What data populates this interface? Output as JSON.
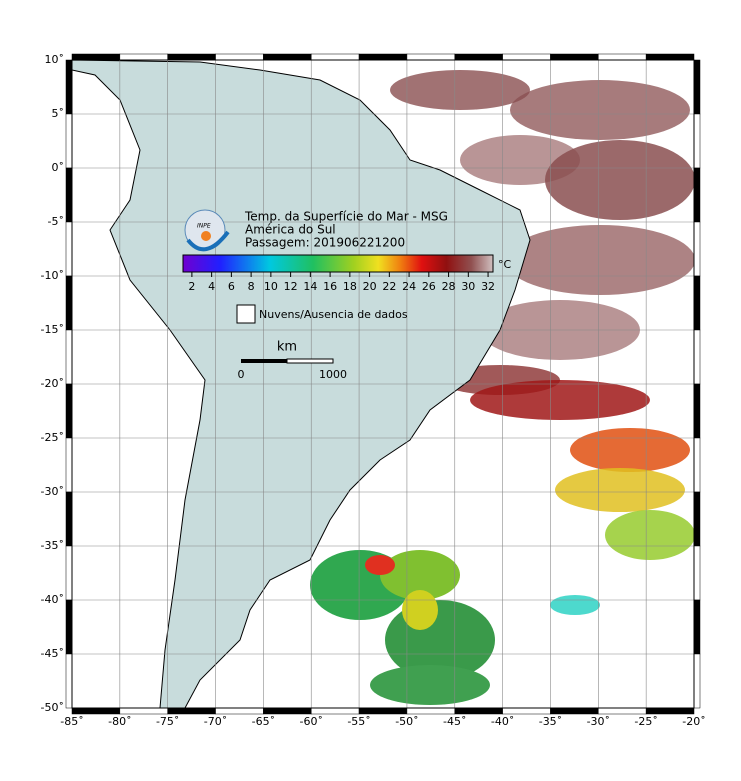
{
  "map": {
    "title": "Temp. da Superfície do Mar - MSG",
    "region": "América do Sul",
    "pass": "Passagem: 201906221200",
    "logo": "INPE",
    "xlim": [
      -85,
      -20
    ],
    "ylim": [
      -50,
      10
    ],
    "xticks": [
      {
        "value": -85,
        "label": "-85˚"
      },
      {
        "value": -80,
        "label": "-80˚"
      },
      {
        "value": -75,
        "label": "-75˚"
      },
      {
        "value": -70,
        "label": "-70˚"
      },
      {
        "value": -65,
        "label": "-65˚"
      },
      {
        "value": -60,
        "label": "-60˚"
      },
      {
        "value": -55,
        "label": "-55˚"
      },
      {
        "value": -50,
        "label": "-50˚"
      },
      {
        "value": -45,
        "label": "-45˚"
      },
      {
        "value": -40,
        "label": "-40˚"
      },
      {
        "value": -35,
        "label": "-35˚"
      },
      {
        "value": -30,
        "label": "-30˚"
      },
      {
        "value": -25,
        "label": "-25˚"
      },
      {
        "value": -20,
        "label": "-20˚"
      }
    ],
    "yticks": [
      {
        "value": 10,
        "label": "10˚"
      },
      {
        "value": 5,
        "label": "5˚"
      },
      {
        "value": 0,
        "label": "0˚"
      },
      {
        "value": -5,
        "label": "-5˚"
      },
      {
        "value": -10,
        "label": "-10˚"
      },
      {
        "value": -15,
        "label": "-15˚"
      },
      {
        "value": -20,
        "label": "-20˚"
      },
      {
        "value": -25,
        "label": "-25˚"
      },
      {
        "value": -30,
        "label": "-30˚"
      },
      {
        "value": -35,
        "label": "-35˚"
      },
      {
        "value": -40,
        "label": "-40˚"
      },
      {
        "value": -45,
        "label": "-45˚"
      },
      {
        "value": -50,
        "label": "-50˚"
      }
    ],
    "colorbar": {
      "unit": "°C",
      "lim": [
        1.1,
        32.5
      ],
      "ticks": [
        2,
        4,
        6,
        8,
        10,
        12,
        14,
        16,
        18,
        20,
        22,
        24,
        26,
        28,
        30,
        32
      ]
    },
    "legend": "Nuvens/Ausencia de dados",
    "scale": {
      "unit": "km",
      "labels": [
        "0",
        "1000"
      ]
    }
  }
}
